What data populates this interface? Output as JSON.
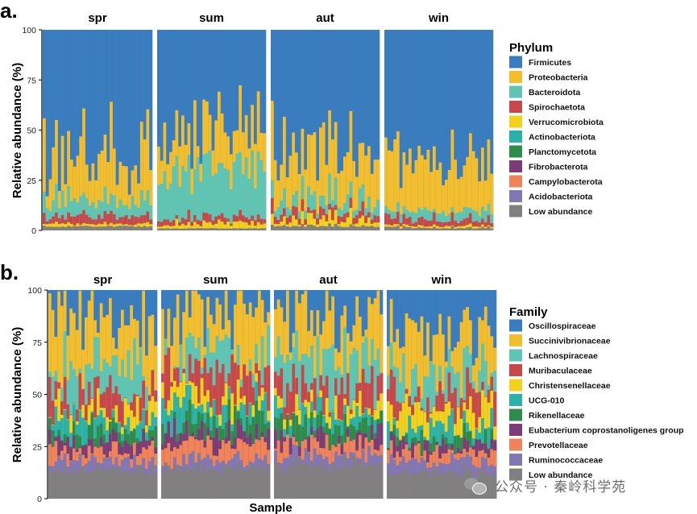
{
  "chart_data": [
    {
      "type": "bar",
      "stacked": true,
      "panel_label": "a.",
      "ylabel": "Relative abundance (%)",
      "xlabel": "",
      "ylim": [
        0,
        100
      ],
      "yticks": [
        "0",
        "25",
        "50",
        "75",
        "100"
      ],
      "facets": [
        "spr",
        "sum",
        "aut",
        "win"
      ],
      "legend_title": "Phylum",
      "series": [
        {
          "name": "Firmicutes",
          "color": "#3A7DBE"
        },
        {
          "name": "Proteobacteria",
          "color": "#F3BE2E"
        },
        {
          "name": "Bacteroidota",
          "color": "#5EC4B3"
        },
        {
          "name": "Spirochaetota",
          "color": "#C8474A"
        },
        {
          "name": "Verrucomicrobiota",
          "color": "#F2D21B"
        },
        {
          "name": "Actinobacteriota",
          "color": "#2BB2A8"
        },
        {
          "name": "Planctomycetota",
          "color": "#2D8B4E"
        },
        {
          "name": "Fibrobacterota",
          "color": "#7D3C78"
        },
        {
          "name": "Campylobacterota",
          "color": "#F08357"
        },
        {
          "name": "Acidobacteriota",
          "color": "#8277B5"
        },
        {
          "name": "Low abundance",
          "color": "#808080"
        }
      ],
      "cumulative_top_profiles": {
        "spr": [
          {
            "Proteobacteria": 55,
            "Bacteroidota": 20,
            "Spirochaetota": 9,
            "Verrucomicrobiota": 4,
            "Low abundance": 2
          },
          {
            "Proteobacteria": 35,
            "Bacteroidota": 15,
            "Spirochaetota": 7,
            "Verrucomicrobiota": 3,
            "Low abundance": 2
          },
          {
            "Proteobacteria": 18,
            "Bacteroidota": 10,
            "Spirochaetota": 5,
            "Verrucomicrobiota": 3,
            "Low abundance": 2
          }
        ],
        "sum": [
          {
            "Proteobacteria": 62,
            "Bacteroidota": 38,
            "Spirochaetota": 9,
            "Verrucomicrobiota": 5,
            "Low abundance": 1
          },
          {
            "Proteobacteria": 50,
            "Bacteroidota": 32,
            "Spirochaetota": 6,
            "Verrucomicrobiota": 3,
            "Low abundance": 1
          },
          {
            "Proteobacteria": 35,
            "Bacteroidota": 20,
            "Spirochaetota": 4,
            "Verrucomicrobiota": 2,
            "Low abundance": 1
          }
        ],
        "aut": [
          {
            "Proteobacteria": 58,
            "Bacteroidota": 25,
            "Spirochaetota": 15,
            "Verrucomicrobiota": 10,
            "Low abundance": 3
          },
          {
            "Proteobacteria": 45,
            "Bacteroidota": 18,
            "Spirochaetota": 10,
            "Verrucomicrobiota": 6,
            "Low abundance": 2
          },
          {
            "Proteobacteria": 30,
            "Bacteroidota": 10,
            "Spirochaetota": 6,
            "Verrucomicrobiota": 3,
            "Low abundance": 2
          }
        ],
        "win": [
          {
            "Proteobacteria": 45,
            "Bacteroidota": 12,
            "Spirochaetota": 8,
            "Verrucomicrobiota": 3,
            "Low abundance": 2
          },
          {
            "Proteobacteria": 35,
            "Bacteroidota": 10,
            "Spirochaetota": 5,
            "Verrucomicrobiota": 2,
            "Low abundance": 1
          },
          {
            "Proteobacteria": 25,
            "Bacteroidota": 8,
            "Spirochaetota": 4,
            "Verrucomicrobiota": 2,
            "Low abundance": 1
          }
        ]
      }
    },
    {
      "type": "bar",
      "stacked": true,
      "panel_label": "b.",
      "ylabel": "Relative abundance (%)",
      "xlabel": "Sample",
      "ylim": [
        0,
        100
      ],
      "yticks": [
        "0",
        "25",
        "50",
        "75",
        "100"
      ],
      "facets": [
        "spr",
        "sum",
        "aut",
        "win"
      ],
      "legend_title": "Family",
      "series": [
        {
          "name": "Oscillospiraceae",
          "color": "#3A7DBE"
        },
        {
          "name": "Succinivibrionaceae",
          "color": "#F3BE2E"
        },
        {
          "name": "Lachnospiraceae",
          "color": "#5EC4B3"
        },
        {
          "name": "Muribaculaceae",
          "color": "#C8474A"
        },
        {
          "name": "Christensenellaceae",
          "color": "#F2D21B"
        },
        {
          "name": "UCG-010",
          "color": "#2BB2A8"
        },
        {
          "name": "Rikenellaceae",
          "color": "#2D8B4E"
        },
        {
          "name": "Eubacterium coprostanoligenes group",
          "color": "#7D3C78"
        },
        {
          "name": "Prevotellaceae",
          "color": "#F08357"
        },
        {
          "name": "Ruminococcaceae",
          "color": "#8277B5"
        },
        {
          "name": "Low abundance",
          "color": "#808080"
        }
      ],
      "cumulative_top_profiles": {
        "spr": [
          {
            "Succinivibrionaceae": 90,
            "Lachnospiraceae": 70,
            "Muribaculaceae": 55,
            "Christensenellaceae": 47,
            "UCG-010": 42,
            "Rikenellaceae": 35,
            "Eubacterium coprostanoligenes group": 30,
            "Prevotellaceae": 25,
            "Ruminococcaceae": 19,
            "Low abundance": 15
          },
          {
            "Succinivibrionaceae": 80,
            "Lachnospiraceae": 60,
            "Muribaculaceae": 48,
            "Christensenellaceae": 40,
            "UCG-010": 36,
            "Rikenellaceae": 30,
            "Eubacterium coprostanoligenes group": 26,
            "Prevotellaceae": 22,
            "Ruminococcaceae": 17,
            "Low abundance": 13
          }
        ],
        "sum": [
          {
            "Succinivibrionaceae": 95,
            "Lachnospiraceae": 75,
            "Muribaculaceae": 68,
            "Christensenellaceae": 55,
            "UCG-010": 48,
            "Rikenellaceae": 42,
            "Eubacterium coprostanoligenes group": 36,
            "Prevotellaceae": 30,
            "Ruminococcaceae": 20,
            "Low abundance": 16
          },
          {
            "Succinivibrionaceae": 85,
            "Lachnospiraceae": 68,
            "Muribaculaceae": 60,
            "Christensenellaceae": 48,
            "UCG-010": 42,
            "Rikenellaceae": 36,
            "Eubacterium coprostanoligenes group": 30,
            "Prevotellaceae": 24,
            "Ruminococcaceae": 17,
            "Low abundance": 14
          }
        ],
        "aut": [
          {
            "Succinivibrionaceae": 92,
            "Lachnospiraceae": 70,
            "Muribaculaceae": 58,
            "Christensenellaceae": 48,
            "UCG-010": 43,
            "Rikenellaceae": 38,
            "Eubacterium coprostanoligenes group": 32,
            "Prevotellaceae": 28,
            "Ruminococcaceae": 22,
            "Low abundance": 18
          },
          {
            "Succinivibrionaceae": 82,
            "Lachnospiraceae": 62,
            "Muribaculaceae": 50,
            "Christensenellaceae": 42,
            "UCG-010": 37,
            "Rikenellaceae": 32,
            "Eubacterium coprostanoligenes group": 28,
            "Prevotellaceae": 24,
            "Ruminococcaceae": 19,
            "Low abundance": 15
          }
        ],
        "win": [
          {
            "Succinivibrionaceae": 85,
            "Lachnospiraceae": 65,
            "Muribaculaceae": 55,
            "Christensenellaceae": 45,
            "UCG-010": 38,
            "Rikenellaceae": 32,
            "Eubacterium coprostanoligenes group": 28,
            "Prevotellaceae": 24,
            "Ruminococcaceae": 19,
            "Low abundance": 14
          },
          {
            "Succinivibrionaceae": 75,
            "Lachnospiraceae": 58,
            "Muribaculaceae": 48,
            "Christensenellaceae": 40,
            "UCG-010": 34,
            "Rikenellaceae": 29,
            "Eubacterium coprostanoligenes group": 25,
            "Prevotellaceae": 21,
            "Ruminococcaceae": 17,
            "Low abundance": 12
          }
        ]
      }
    }
  ],
  "watermark": {
    "text": "公众号 · 秦岭科学苑",
    "icon": "wechat-icon"
  }
}
